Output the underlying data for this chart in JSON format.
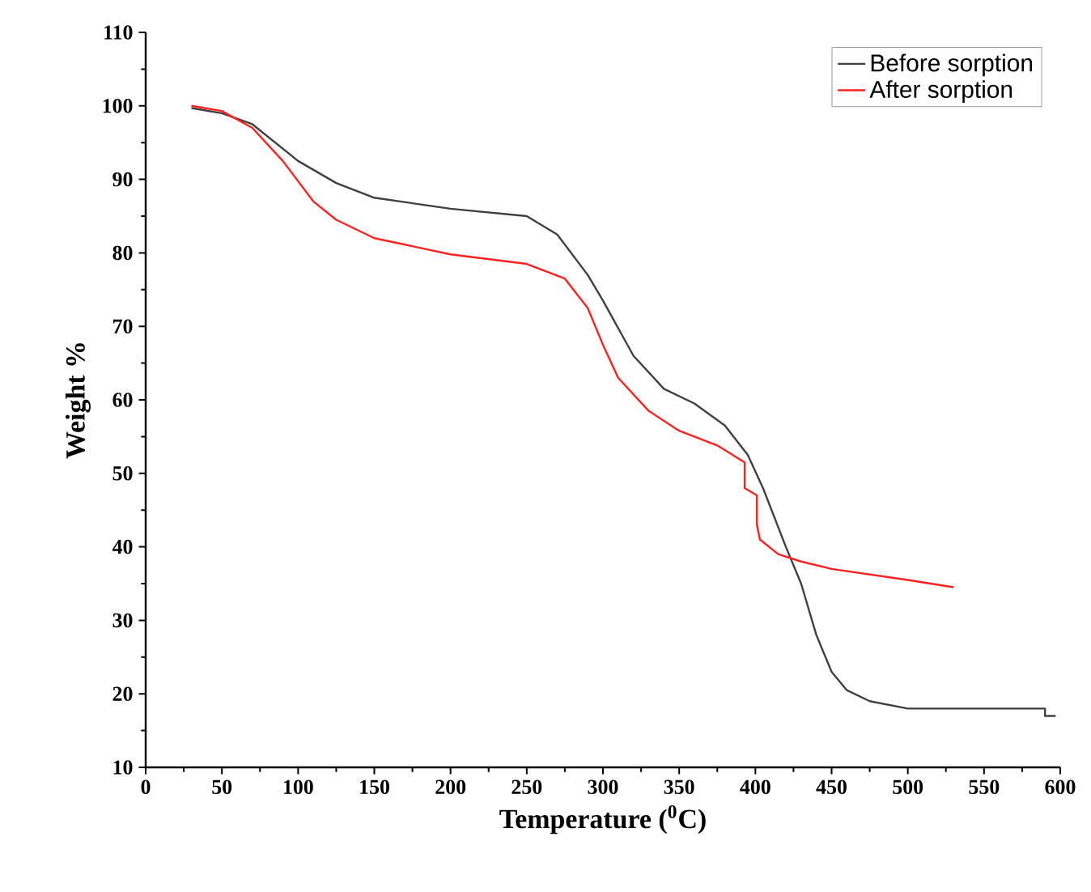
{
  "chart_data": {
    "type": "line",
    "xlabel": "Temperature ($^{0}$C)",
    "ylabel": "Weight %",
    "xlim": [
      0,
      600
    ],
    "ylim": [
      10,
      110
    ],
    "xticks": [
      0,
      50,
      100,
      150,
      200,
      250,
      300,
      350,
      400,
      450,
      500,
      550,
      600
    ],
    "yticks": [
      10,
      20,
      30,
      40,
      50,
      60,
      70,
      80,
      90,
      100,
      110
    ],
    "legend": "top right",
    "marker": "none",
    "line_style": "solid",
    "series": [
      {
        "name": "Before sorption",
        "color": "#404040",
        "x": [
          30,
          50,
          70,
          100,
          125,
          150,
          200,
          250,
          270,
          290,
          300,
          320,
          340,
          360,
          380,
          395,
          405,
          420,
          430,
          440,
          450,
          460,
          475,
          500,
          590,
          590,
          597
        ],
        "values": [
          99.7,
          99,
          97.5,
          92.5,
          89.5,
          87.5,
          86,
          85,
          82.5,
          77,
          73.5,
          66,
          61.5,
          59.5,
          56.5,
          52.5,
          48,
          40,
          35,
          28,
          23,
          20.5,
          19,
          18,
          18,
          17,
          17
        ]
      },
      {
        "name": "After sorption",
        "color": "#ff2020",
        "x": [
          30,
          50,
          70,
          90,
          110,
          125,
          150,
          200,
          250,
          275,
          290,
          300,
          310,
          330,
          350,
          375,
          393,
          393,
          401,
          401,
          403,
          415,
          430,
          450,
          500,
          530
        ],
        "values": [
          100,
          99.3,
          97,
          92.5,
          87,
          84.5,
          82,
          79.8,
          78.5,
          76.5,
          72.5,
          67.5,
          63,
          58.5,
          55.8,
          53.8,
          51.5,
          48,
          47,
          43,
          41,
          39,
          38,
          37,
          35.5,
          34.5
        ]
      }
    ]
  }
}
